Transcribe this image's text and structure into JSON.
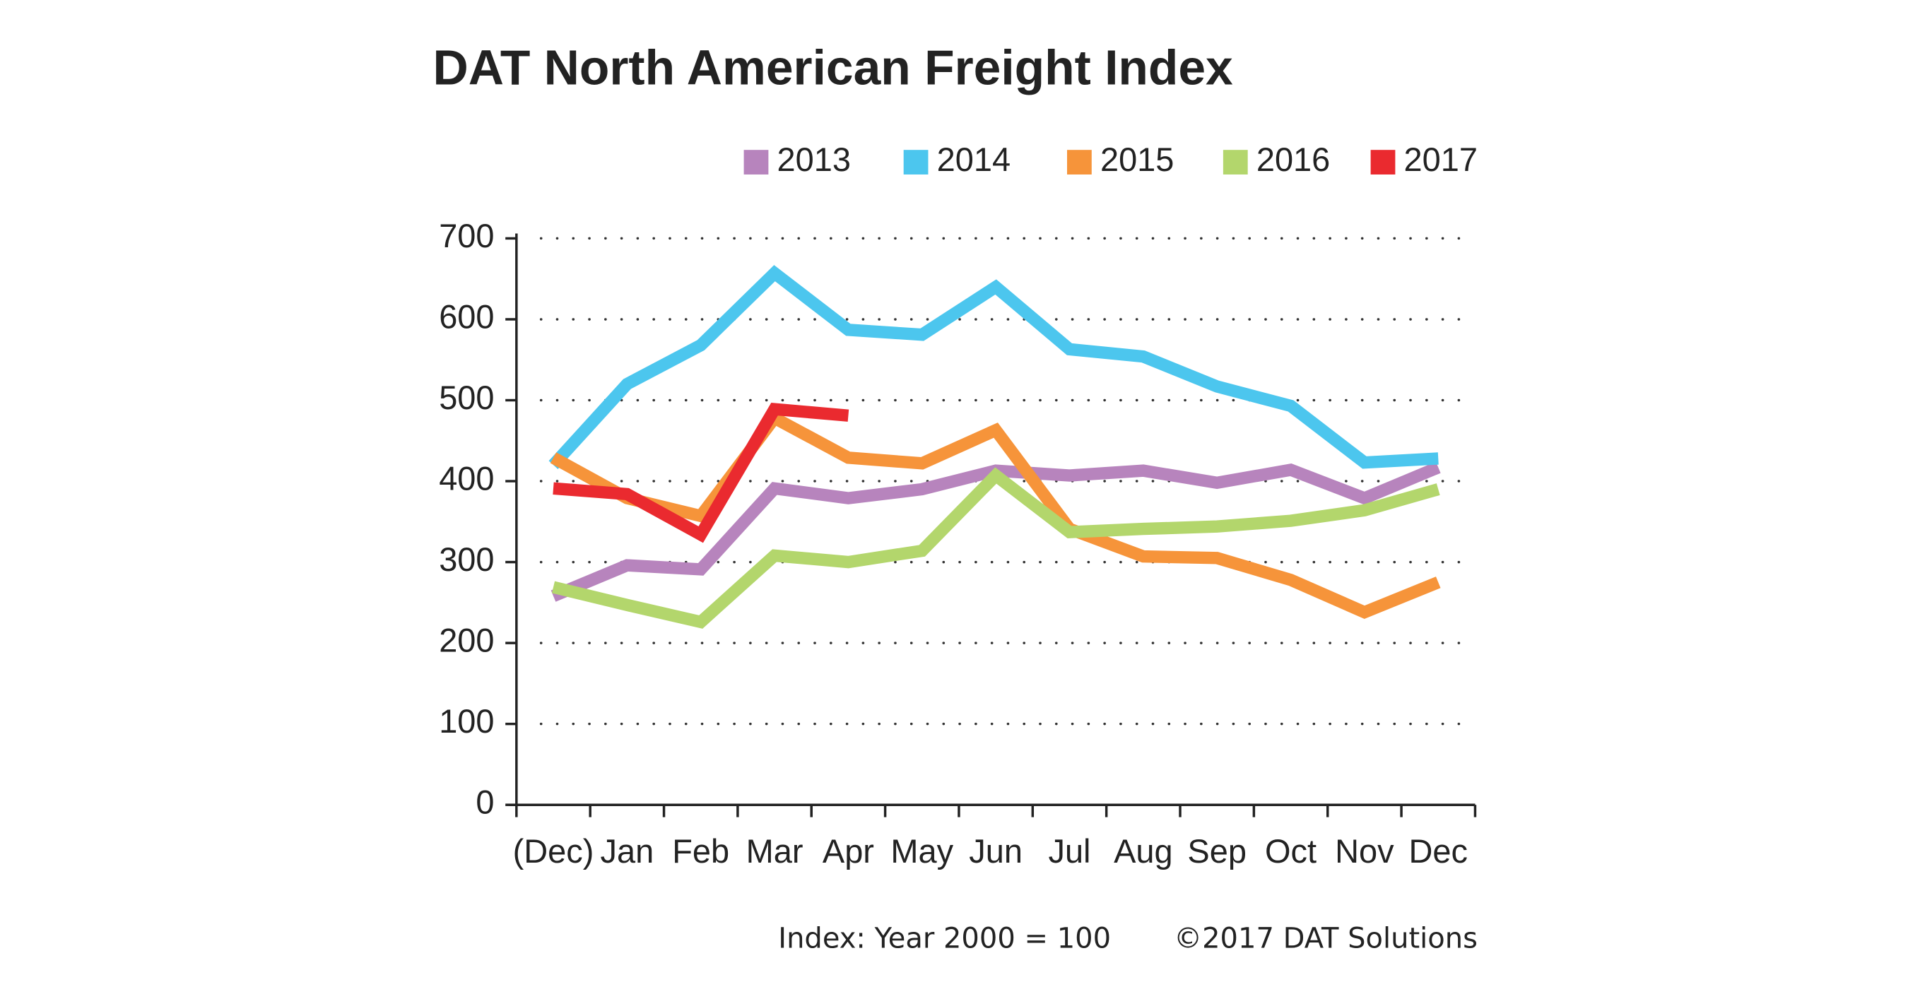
{
  "chart_data": {
    "type": "line",
    "title": "DAT North American Freight Index",
    "categories": [
      "(Dec)",
      "Jan",
      "Feb",
      "Mar",
      "Apr",
      "May",
      "Jun",
      "Jul",
      "Aug",
      "Sep",
      "Oct",
      "Nov",
      "Dec"
    ],
    "series": [
      {
        "name": "2013",
        "color": "#b784bd",
        "values": [
          258,
          296,
          291,
          391,
          379,
          390,
          413,
          407,
          413,
          398,
          414,
          379,
          417
        ]
      },
      {
        "name": "2014",
        "color": "#4cc6ee",
        "values": [
          420,
          520,
          568,
          657,
          587,
          581,
          640,
          563,
          554,
          517,
          493,
          423,
          428
        ]
      },
      {
        "name": "2015",
        "color": "#f6943a",
        "values": [
          429,
          379,
          357,
          478,
          429,
          422,
          463,
          341,
          307,
          305,
          278,
          238,
          275
        ]
      },
      {
        "name": "2016",
        "color": "#b3d66c",
        "values": [
          269,
          247,
          226,
          308,
          300,
          314,
          407,
          337,
          341,
          344,
          351,
          364,
          390
        ]
      },
      {
        "name": "2017",
        "color": "#ea2a2f",
        "values": [
          391,
          384,
          334,
          489,
          481,
          null,
          null,
          null,
          null,
          null,
          null,
          null,
          null
        ]
      }
    ],
    "ylim": [
      0,
      700
    ],
    "yticks": [
      0,
      100,
      200,
      300,
      400,
      500,
      600,
      700
    ],
    "grid": true,
    "notes": [
      "Index: Year 2000 = 100",
      "©2017 DAT Solutions"
    ]
  }
}
